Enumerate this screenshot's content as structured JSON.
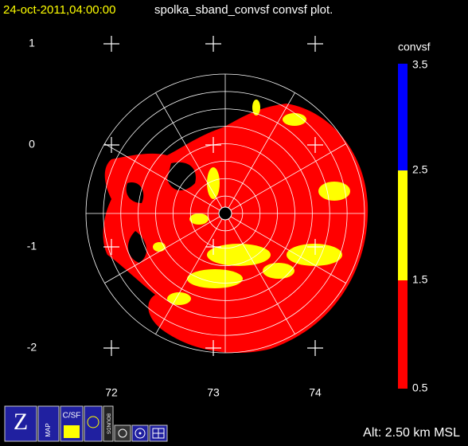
{
  "header": {
    "timestamp": "24-oct-2011,04:00:00",
    "title": "spolka_sband_convsf convsf  plot."
  },
  "y_axis": {
    "labels": [
      "1",
      "0",
      "-1",
      "-2"
    ]
  },
  "x_axis": {
    "labels": [
      "72",
      "73",
      "74"
    ]
  },
  "colorbar": {
    "title": "convsf",
    "labels": [
      "3.5",
      "2.5",
      "1.5",
      "0.5"
    ]
  },
  "status": {
    "altitude": "Alt: 2.50 km MSL"
  },
  "toolbar": {
    "labels": [
      "MAP",
      "C/SF",
      "BOUNDS"
    ]
  }
}
